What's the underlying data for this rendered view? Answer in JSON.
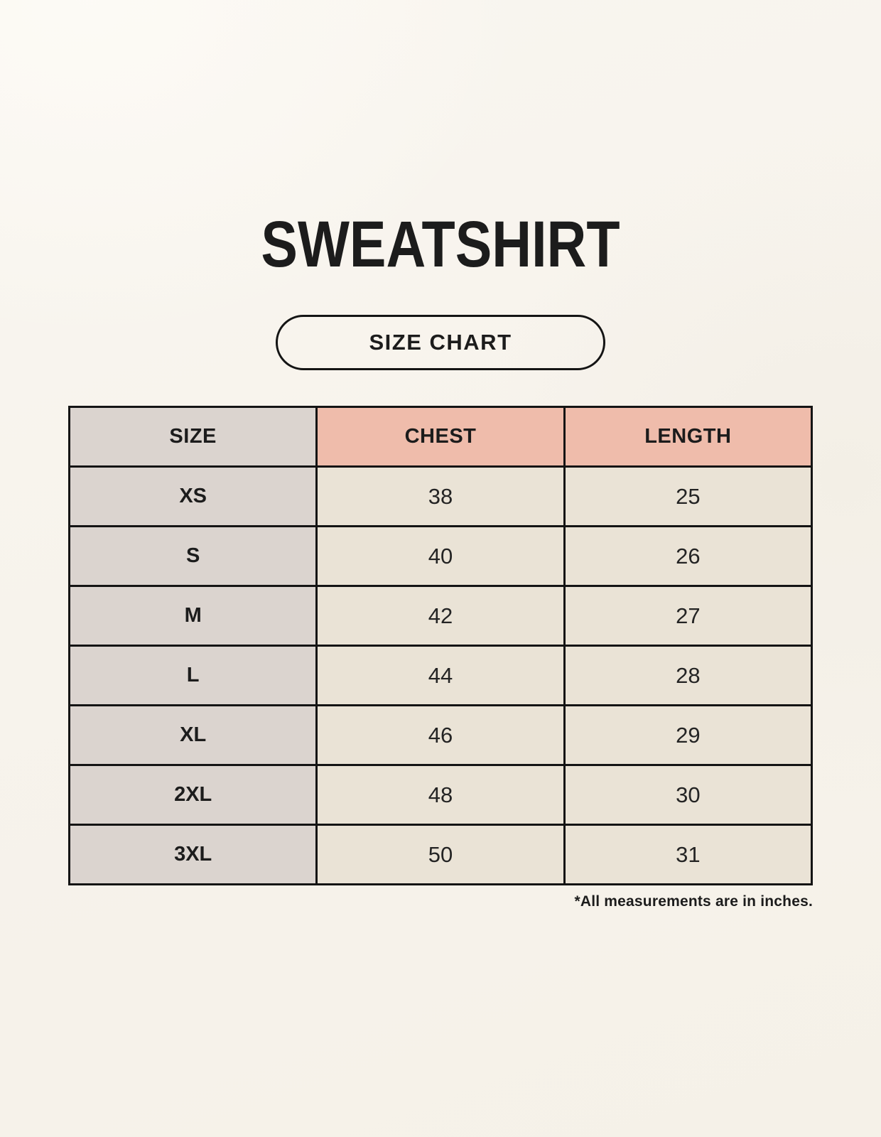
{
  "page": {
    "title": "SWEATSHIRT",
    "badge_label": "SIZE CHART",
    "footnote": "*All measurements are in inches."
  },
  "colors": {
    "page_background": "#f8f5ee",
    "size_column_background": "#dbd4cf",
    "accent_header_background": "#efbcab",
    "value_cell_background": "#eae3d6",
    "border": "#141414",
    "text": "#1c1c1c"
  },
  "chart_data": {
    "type": "table",
    "title": "SWEATSHIRT",
    "subtitle": "SIZE CHART",
    "columns": [
      "SIZE",
      "CHEST",
      "LENGTH"
    ],
    "rows": [
      {
        "size": "XS",
        "chest": 38,
        "length": 25
      },
      {
        "size": "S",
        "chest": 40,
        "length": 26
      },
      {
        "size": "M",
        "chest": 42,
        "length": 27
      },
      {
        "size": "L",
        "chest": 44,
        "length": 28
      },
      {
        "size": "XL",
        "chest": 46,
        "length": 29
      },
      {
        "size": "2XL",
        "chest": 48,
        "length": 30
      },
      {
        "size": "3XL",
        "chest": 50,
        "length": 31
      }
    ],
    "units": "inches",
    "footnote": "*All measurements are in inches."
  }
}
